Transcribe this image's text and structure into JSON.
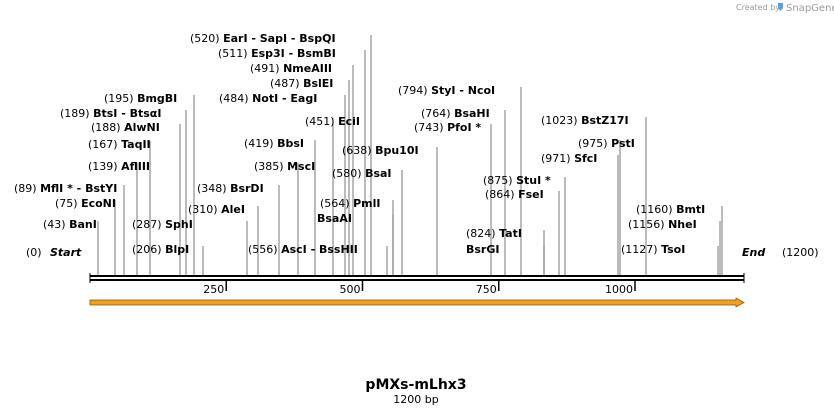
{
  "credit": {
    "created_by": "Created by",
    "brand": "SnapGene"
  },
  "map": {
    "title": "pMXs-mLhx3",
    "length_label": "1200 bp",
    "length": 1200,
    "start_label": "Start",
    "end_label": "End",
    "start_pos": "(0)",
    "end_pos": "(1200)",
    "ticks": [
      {
        "value": 250,
        "label": "250"
      },
      {
        "value": 500,
        "label": "500"
      },
      {
        "value": 750,
        "label": "750"
      },
      {
        "value": 1000,
        "label": "1000"
      }
    ],
    "feature": {
      "name": "insert-arrow",
      "start": 0,
      "end": 1200,
      "color": "#f0a020"
    }
  },
  "sites": [
    {
      "pos": "(43)",
      "name": "BanI",
      "at": 43
    },
    {
      "pos": "(75)",
      "name": "EcoNI",
      "at": 75
    },
    {
      "pos": "(89)",
      "name": "MflI * - BstYI",
      "at": 89
    },
    {
      "pos": "(139)",
      "name": "AflIII",
      "at": 139
    },
    {
      "pos": "(167)",
      "name": "TaqII",
      "at": 167
    },
    {
      "pos": "(188)",
      "name": "AlwNI",
      "at": 188
    },
    {
      "pos": "(189)",
      "name": "BtsI - BtsαI",
      "at": 189
    },
    {
      "pos": "(195)",
      "name": "BmgBI",
      "at": 195
    },
    {
      "pos": "(206)",
      "name": "BlpI",
      "at": 206
    },
    {
      "pos": "(287)",
      "name": "SphI",
      "at": 287
    },
    {
      "pos": "(310)",
      "name": "AleI",
      "at": 310
    },
    {
      "pos": "(348)",
      "name": "BsrDI",
      "at": 348
    },
    {
      "pos": "(385)",
      "name": "MscI",
      "at": 385
    },
    {
      "pos": "(419)",
      "name": "BbsI",
      "at": 419
    },
    {
      "pos": "(451)",
      "name": "EciI",
      "at": 451
    },
    {
      "pos": "(484)",
      "name": "NotI - EagI",
      "at": 484
    },
    {
      "pos": "(487)",
      "name": "BslEI",
      "at": 487
    },
    {
      "pos": "(491)",
      "name": "NmeAIII",
      "at": 491
    },
    {
      "pos": "(511)",
      "name": "Esp3I - BsmBI",
      "at": 511
    },
    {
      "pos": "(520)",
      "name": "EarI - SapI - BspQI",
      "at": 520
    },
    {
      "pos": "(556)",
      "name": "AscI - BssHII",
      "at": 556
    },
    {
      "pos": "(564)",
      "name": "PmlI",
      "at": 564
    },
    {
      "pos": "",
      "name": "BsaAI",
      "at": 564
    },
    {
      "pos": "(580)",
      "name": "BsaI",
      "at": 580
    },
    {
      "pos": "(638)",
      "name": "Bpu10I",
      "at": 638
    },
    {
      "pos": "(743)",
      "name": "PfoI *",
      "at": 743
    },
    {
      "pos": "(764)",
      "name": "BsaHI",
      "at": 764
    },
    {
      "pos": "(794)",
      "name": "StyI - NcoI",
      "at": 794
    },
    {
      "pos": "(824)",
      "name": "TatI",
      "at": 824
    },
    {
      "pos": "",
      "name": "BsrGI",
      "at": 824
    },
    {
      "pos": "(864)",
      "name": "FseI",
      "at": 864
    },
    {
      "pos": "(875)",
      "name": "StuI *",
      "at": 875
    },
    {
      "pos": "(971)",
      "name": "SfcI",
      "at": 971
    },
    {
      "pos": "(975)",
      "name": "PstI",
      "at": 975
    },
    {
      "pos": "(1023)",
      "name": "BstZ17I",
      "at": 1023
    },
    {
      "pos": "(1127)",
      "name": "TsoI",
      "at": 1127
    },
    {
      "pos": "(1156)",
      "name": "NheI",
      "at": 1156
    },
    {
      "pos": "(1160)",
      "name": "BmtI",
      "at": 1160
    }
  ]
}
